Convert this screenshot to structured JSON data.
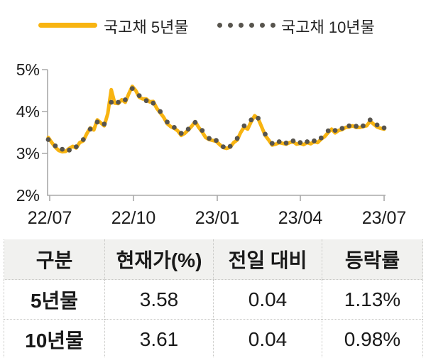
{
  "legend": {
    "items": [
      {
        "label": "국고채 5년물",
        "color": "#F8B411",
        "marker": "solid-line"
      },
      {
        "label": "국고채 10년물",
        "color": "#57544D",
        "marker": "dotted-line"
      }
    ]
  },
  "chart_data": {
    "type": "line",
    "title": "",
    "xlabel": "",
    "ylabel": "",
    "x_axis": {
      "tick_labels": [
        "22/07",
        "22/10",
        "23/01",
        "23/04",
        "23/07"
      ],
      "range_note": "Jul 2022 - Jul 2023"
    },
    "y_axis": {
      "tick_labels": [
        "5%",
        "4%",
        "3%",
        "2%"
      ],
      "min": 2,
      "max": 5,
      "unit": "%"
    },
    "grid": "off",
    "legend_position": "top",
    "series": [
      {
        "name": "국고채 5년물",
        "style": "line",
        "color": "#F8B411",
        "values": [
          3.38,
          3.26,
          3.15,
          3.07,
          3.04,
          3.05,
          3.12,
          3.17,
          3.13,
          3.26,
          3.3,
          3.47,
          3.61,
          3.56,
          3.8,
          3.73,
          3.66,
          3.95,
          4.52,
          4.2,
          4.19,
          4.28,
          4.22,
          4.42,
          4.6,
          4.5,
          4.34,
          4.3,
          4.3,
          4.23,
          4.24,
          4.08,
          3.97,
          3.86,
          3.71,
          3.64,
          3.6,
          3.54,
          3.43,
          3.48,
          3.56,
          3.65,
          3.76,
          3.62,
          3.51,
          3.38,
          3.33,
          3.31,
          3.29,
          3.21,
          3.14,
          3.12,
          3.15,
          3.26,
          3.32,
          3.5,
          3.63,
          3.58,
          3.76,
          3.9,
          3.83,
          3.63,
          3.43,
          3.32,
          3.2,
          3.22,
          3.26,
          3.24,
          3.22,
          3.26,
          3.28,
          3.22,
          3.24,
          3.21,
          3.26,
          3.23,
          3.28,
          3.26,
          3.34,
          3.4,
          3.5,
          3.58,
          3.49,
          3.55,
          3.57,
          3.62,
          3.63,
          3.66,
          3.62,
          3.62,
          3.64,
          3.66,
          3.77,
          3.7,
          3.63,
          3.6,
          3.58
        ]
      },
      {
        "name": "국고채 10년물",
        "style": "dots",
        "color": "#57544D",
        "point_stride": 2,
        "values": [
          3.33,
          3.18,
          3.1,
          3.08,
          3.16,
          3.33,
          3.58,
          3.75,
          3.7,
          4.22,
          4.22,
          4.28,
          4.55,
          4.38,
          4.26,
          4.2,
          4.0,
          3.75,
          3.62,
          3.48,
          3.58,
          3.74,
          3.55,
          3.36,
          3.31,
          3.16,
          3.17,
          3.36,
          3.66,
          3.8,
          3.84,
          3.46,
          3.24,
          3.28,
          3.25,
          3.3,
          3.26,
          3.28,
          3.3,
          3.37,
          3.54,
          3.55,
          3.6,
          3.66,
          3.65,
          3.66,
          3.8,
          3.68,
          3.61
        ]
      }
    ]
  },
  "table": {
    "columns": [
      "구분",
      "현재가(%)",
      "전일 대비",
      "등락률"
    ],
    "rows": [
      {
        "label": "5년물",
        "current": "3.58",
        "change": "0.04",
        "rate": "1.13%"
      },
      {
        "label": "10년물",
        "current": "3.61",
        "change": "0.04",
        "rate": "0.98%"
      }
    ]
  },
  "colors": {
    "series_5y": "#F8B411",
    "series_10y": "#57544D",
    "axis": "#A9A9A9",
    "table_header_bg": "#F1F1EF",
    "table_border": "#C7C7C4",
    "text": "#191919"
  }
}
